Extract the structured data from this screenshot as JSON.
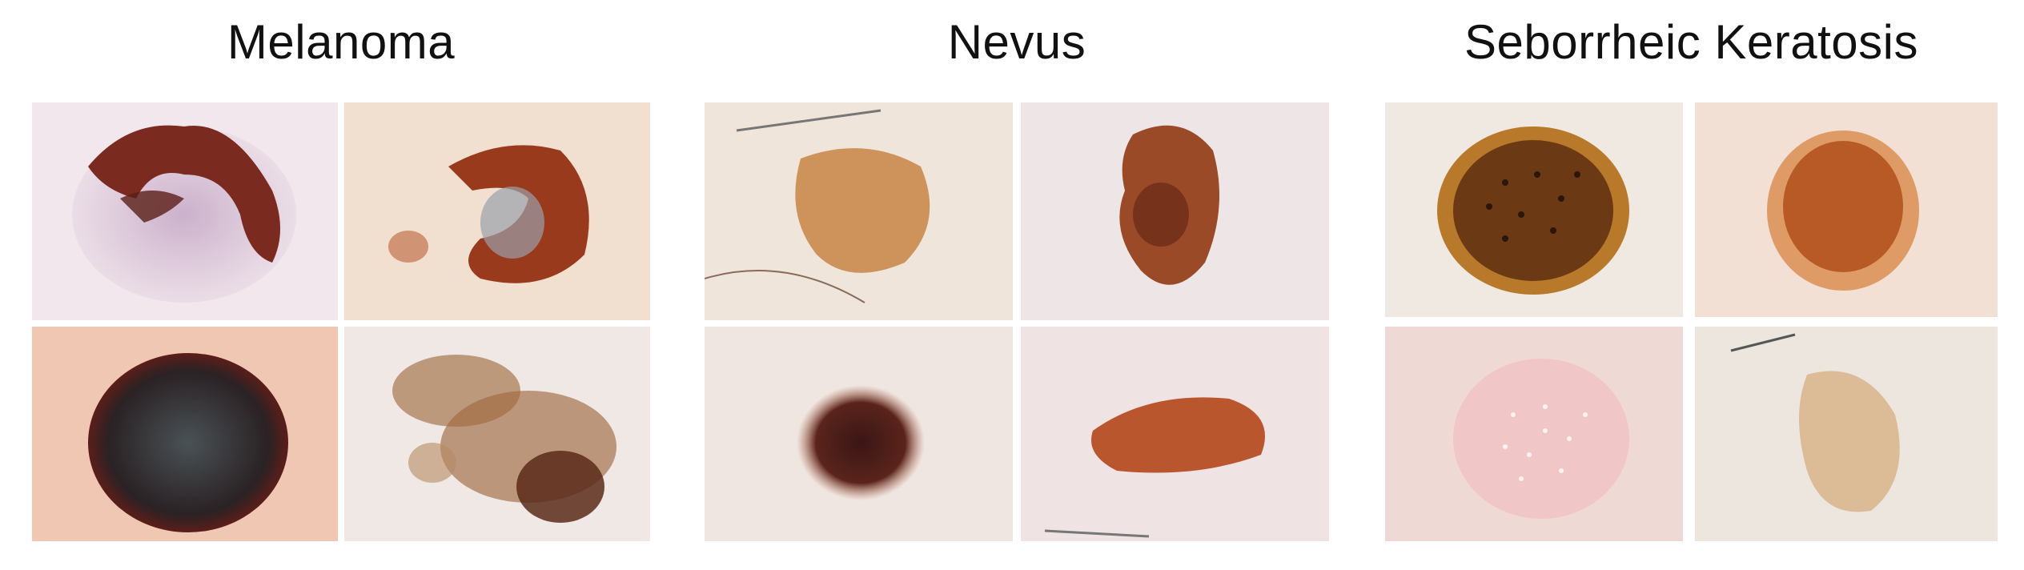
{
  "groups": [
    {
      "title": "Melanoma",
      "tiles": [
        {
          "name": "melanoma-lesion-1",
          "bg": "#f0e4ea",
          "fill": "#7a2a1e",
          "accent": "#b59ab8"
        },
        {
          "name": "melanoma-lesion-2",
          "bg": "#efdccd",
          "fill": "#9a3a1c",
          "accent": "#9aa0aa"
        },
        {
          "name": "melanoma-lesion-3",
          "bg": "#f0c6b1",
          "fill": "#2e2a2c",
          "accent": "#5b1e1a"
        },
        {
          "name": "melanoma-lesion-4",
          "bg": "#eee7e2",
          "fill": "#8a5430",
          "accent": "#5a2a1a"
        }
      ]
    },
    {
      "title": "Nevus",
      "tiles": [
        {
          "name": "nevus-lesion-1",
          "bg": "#efe4da",
          "fill": "#c98a4c",
          "accent": "#d8a066"
        },
        {
          "name": "nevus-lesion-2",
          "bg": "#eee4e6",
          "fill": "#9a4a26",
          "accent": "#6e2c1a"
        },
        {
          "name": "nevus-lesion-3",
          "bg": "#efe6e0",
          "fill": "#4a1f1c",
          "accent": "#a05a44"
        },
        {
          "name": "nevus-lesion-4",
          "bg": "#efe2e2",
          "fill": "#b9562e",
          "accent": "#d37a50"
        }
      ]
    },
    {
      "title": "Seborrheic Keratosis",
      "tiles": [
        {
          "name": "keratosis-lesion-1",
          "bg": "#efe9e0",
          "fill": "#6b3a14",
          "accent": "#b87a2a"
        },
        {
          "name": "keratosis-lesion-2",
          "bg": "#f2dfd4",
          "fill": "#b85a26",
          "accent": "#d98a4a"
        },
        {
          "name": "keratosis-lesion-3",
          "bg": "#efd9d6",
          "fill": "#f1c6c6",
          "accent": "#ffffff"
        },
        {
          "name": "keratosis-lesion-4",
          "bg": "#ede5de",
          "fill": "#d7b48a",
          "accent": "#c99c6c"
        }
      ]
    }
  ]
}
